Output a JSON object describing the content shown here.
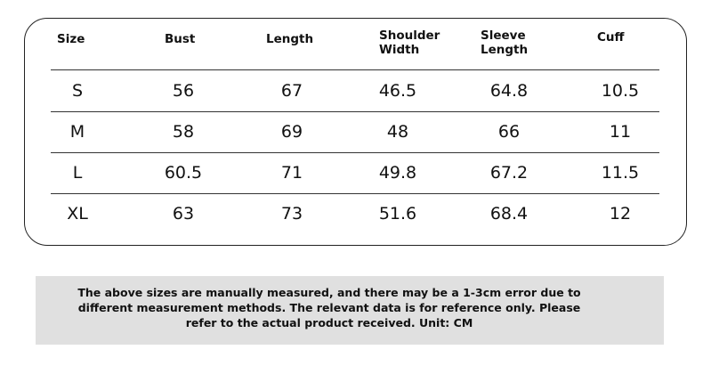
{
  "table": {
    "header": [
      "Size",
      "Bust",
      "Length",
      "Shoulder Width",
      "Sleeve Length",
      "Cuff"
    ],
    "rows": [
      [
        "S",
        56,
        67,
        46.5,
        64.8,
        10.5
      ],
      [
        "M",
        58,
        69,
        48,
        66,
        11
      ],
      [
        "L",
        60.5,
        71,
        49.8,
        67.2,
        11.5
      ],
      [
        "XL",
        63,
        73,
        51.6,
        68.4,
        12
      ]
    ]
  },
  "note": [
    "The above sizes are manually measured, and there may be a 1-3cm error due to",
    "different measurement methods. The relevant data is for reference only. Please",
    "refer to the actual product received. Unit: CM"
  ]
}
